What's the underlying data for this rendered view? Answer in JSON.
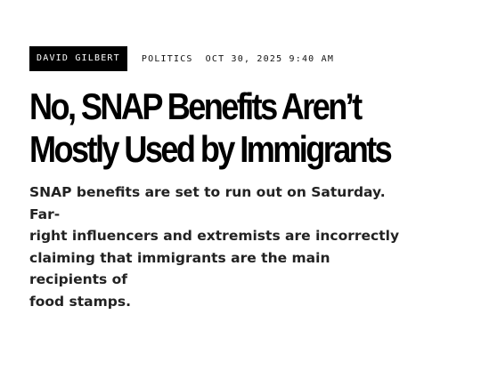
{
  "article": {
    "author": "David Gilbert",
    "section": "Politics",
    "timestamp": "Oct 30, 2025 9:40 AM",
    "headline_line1": "No, SNAP Benefits Aren’t",
    "headline_line2": "Mostly Used by Immigrants",
    "dek_line1": "SNAP benefits are set to run out on Saturday. Far-",
    "dek_line2": "right influencers and extremists are incorrectly",
    "dek_line3": "claiming that immigrants are the main recipients of",
    "dek_line4": "food stamps."
  },
  "colors": {
    "badge_background": "#000000",
    "badge_text": "#ffffff",
    "text": "#1a1a1a"
  }
}
